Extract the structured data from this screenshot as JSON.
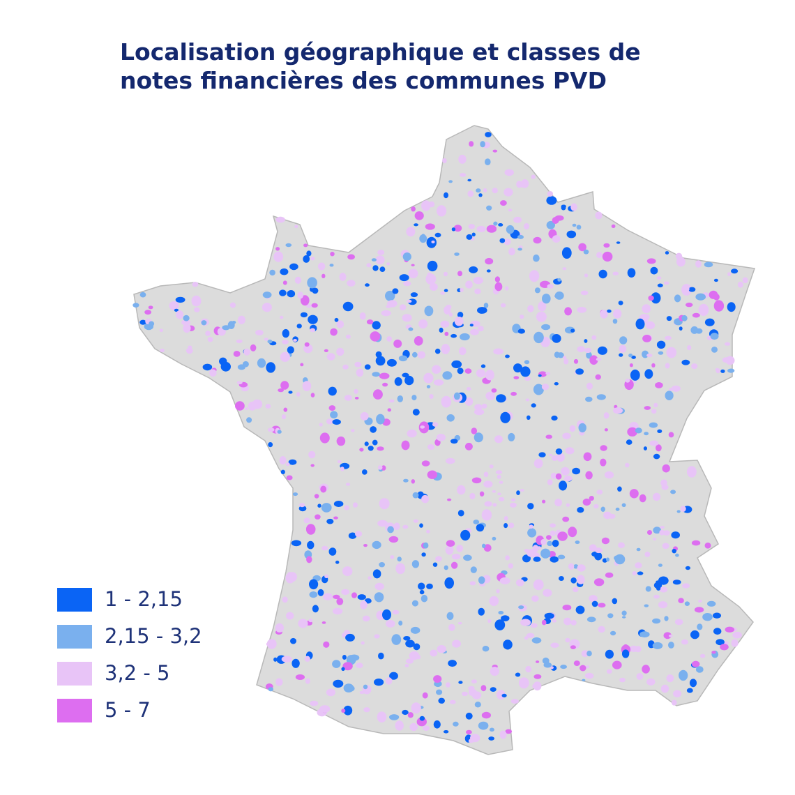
{
  "title": [
    "Localisation géographique et classes de",
    "notes financières des communes PVD"
  ],
  "legend": [
    {
      "label": "1 - 2,15",
      "color": "#0a64f5"
    },
    {
      "label": "2,15 - 3,2",
      "color": "#7ab0ee"
    },
    {
      "label": "3,2 - 5",
      "color": "#e8c4f7"
    },
    {
      "label": "5 - 7",
      "color": "#dd6ef0"
    }
  ]
}
